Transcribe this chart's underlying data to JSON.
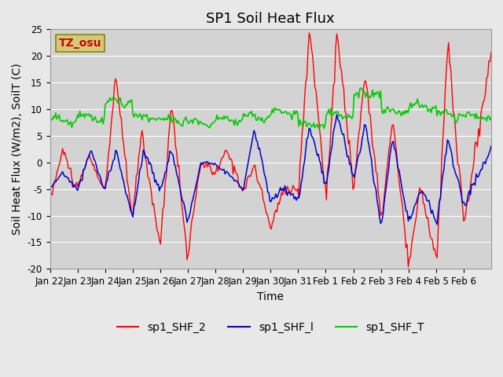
{
  "title": "SP1 Soil Heat Flux",
  "xlabel": "Time",
  "ylabel": "Soil Heat Flux (W/m2), SoilT (C)",
  "ylim": [
    -20,
    25
  ],
  "n_days": 16,
  "x_tick_labels": [
    "Jan 22",
    "Jan 23",
    "Jan 24",
    "Jan 25",
    "Jan 26",
    "Jan 27",
    "Jan 28",
    "Jan 29",
    "Jan 30",
    "Jan 31",
    "Feb 1",
    "Feb 2",
    "Feb 3",
    "Feb 4",
    "Feb 5",
    "Feb 6"
  ],
  "annotation_text": "TZ_osu",
  "annotation_box_color": "#d4c97a",
  "annotation_text_color": "#cc0000",
  "bg_color": "#e8e8e8",
  "plot_bg_color": "#d3d3d3",
  "legend_labels": [
    "sp1_SHF_2",
    "sp1_SHF_l",
    "sp1_SHF_T"
  ],
  "line_colors": [
    "#ff0000",
    "#0000cc",
    "#00cc00"
  ],
  "title_fontsize": 13,
  "label_fontsize": 10,
  "tick_fontsize": 8.5,
  "y_ticks": [
    -20,
    -15,
    -10,
    -5,
    0,
    5,
    10,
    15,
    20,
    25
  ]
}
